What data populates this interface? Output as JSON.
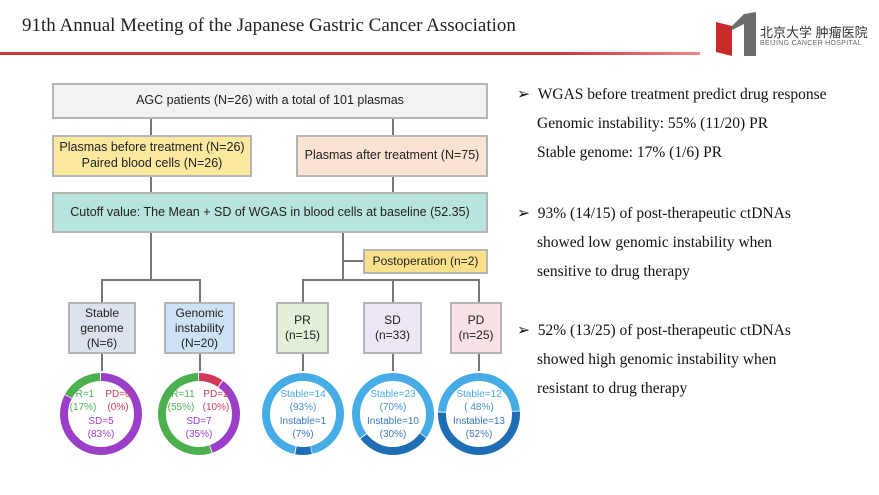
{
  "header": {
    "title": "91th Annual Meeting of the Japanese Gastric Cancer Association",
    "logo": {
      "chinese": "北京大学 肿瘤医院",
      "english": "BEIJING CANCER HOSPITAL"
    }
  },
  "flowchart": {
    "top": "AGC patients (N=26) with a total of 101 plasmas",
    "before_line1": "Plasmas before treatment (N=26)",
    "before_line2": "Paired blood cells (N=26)",
    "after": "Plasmas after treatment (N=75)",
    "cutoff": "Cutoff value: The Mean + SD of WGAS in blood cells at baseline (52.35)",
    "postop": "Postoperation (n=2)",
    "groups": [
      {
        "l1": "Stable",
        "l2": "genome",
        "l3": "(N=6)",
        "color": "#dde3ee",
        "segments": [
          {
            "label": "PR=1",
            "pct": "(17%)",
            "value": 17,
            "color": "#4caf50"
          },
          {
            "label": "PD=0",
            "pct": "(0%)",
            "value": 0,
            "color": "#d0395a"
          },
          {
            "label": "SD=5",
            "pct": "(83%)",
            "value": 83,
            "color": "#9b3fc9"
          }
        ]
      },
      {
        "l1": "Genomic",
        "l2": "instability",
        "l3": "(N=20)",
        "color": "#cde3f5",
        "segments": [
          {
            "label": "PR=11",
            "pct": "(55%)",
            "value": 55,
            "color": "#4caf50"
          },
          {
            "label": "PD=2",
            "pct": "(10%)",
            "value": 10,
            "color": "#d0395a"
          },
          {
            "label": "SD=7",
            "pct": "(35%)",
            "value": 35,
            "color": "#9b3fc9"
          }
        ]
      },
      {
        "l1": "PR",
        "l2": "(n=15)",
        "color": "#e2efd9",
        "segments": [
          {
            "label": "Stable=14",
            "pct": "(93%)",
            "value": 93,
            "color": "#45ace6"
          },
          {
            "label": "Instable=1",
            "pct": "(7%)",
            "value": 7,
            "color": "#1f6db5"
          }
        ]
      },
      {
        "l1": "SD",
        "l2": "(n=33)",
        "color": "#ece6f5",
        "segments": [
          {
            "label": "Stable=23",
            "pct": "(70%)",
            "value": 70,
            "color": "#45ace6"
          },
          {
            "label": "Instable=10",
            "pct": "(30%)",
            "value": 30,
            "color": "#1f6db5"
          }
        ]
      },
      {
        "l1": "PD",
        "l2": "(n=25)",
        "color": "#f9e1e6",
        "segments": [
          {
            "label": "Stable=12",
            "pct": "( 48%)",
            "value": 48,
            "color": "#45ace6"
          },
          {
            "label": "Instable=13",
            "pct": "(52%)",
            "value": 52,
            "color": "#1f6db5"
          }
        ]
      }
    ]
  },
  "bullets": [
    {
      "lines": [
        "WGAS before treatment predict drug response",
        "Genomic instability: 55% (11/20) PR",
        "Stable genome: 17% (1/6) PR"
      ]
    },
    {
      "lines": [
        "93% (14/15) of post-therapeutic ctDNAs",
        "showed low genomic instability when",
        "sensitive to drug therapy"
      ]
    },
    {
      "lines": [
        "52% (13/25) of post-therapeutic ctDNAs",
        "showed high genomic instability when",
        "resistant to drug therapy"
      ]
    }
  ]
}
